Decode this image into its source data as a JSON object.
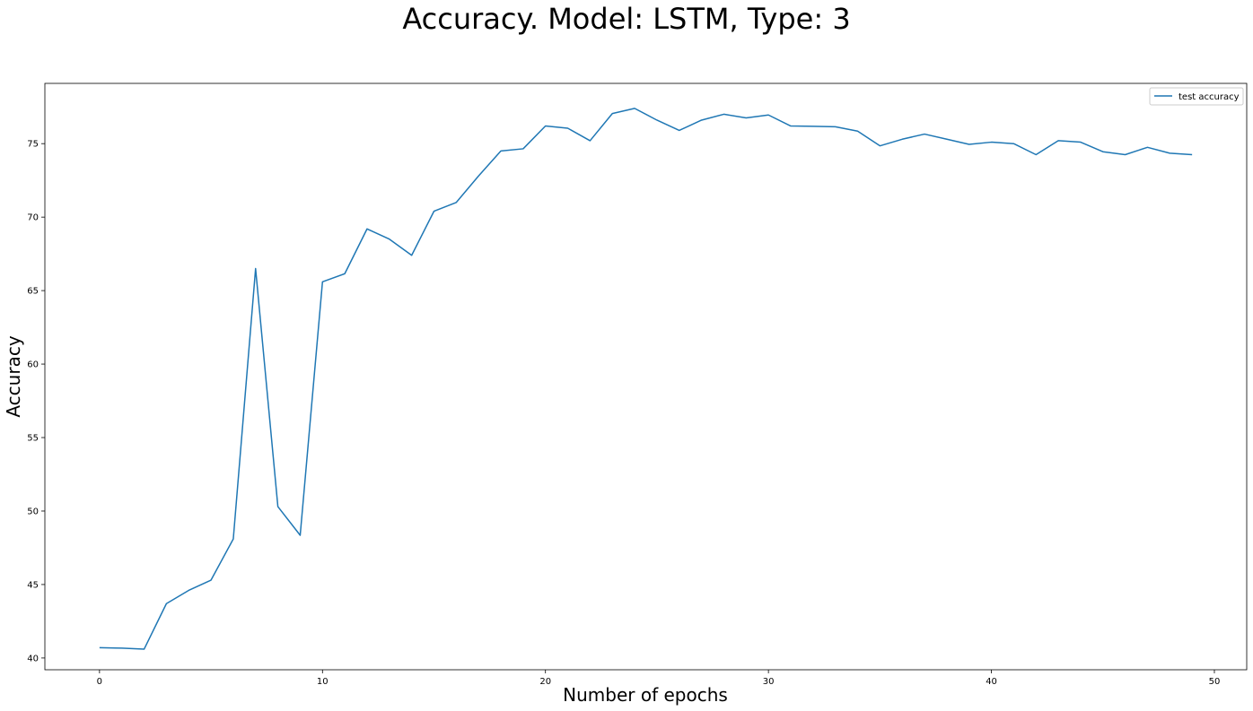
{
  "chart_data": {
    "type": "line",
    "title": "Accuracy. Model: LSTM, Type: 3",
    "xlabel": "Number of epochs",
    "ylabel": "Accuracy",
    "xlim": [
      -2.45,
      51.45
    ],
    "ylim": [
      39.2,
      79.1
    ],
    "xticks": [
      0,
      10,
      20,
      30,
      40,
      50
    ],
    "yticks": [
      40,
      45,
      50,
      55,
      60,
      65,
      70,
      75
    ],
    "grid": false,
    "legend": "top-right",
    "series": [
      {
        "name": "test accuracy",
        "color": "#1f77b4",
        "x": [
          0,
          1,
          2,
          3,
          4,
          5,
          6,
          7,
          8,
          9,
          10,
          11,
          12,
          13,
          14,
          15,
          16,
          17,
          18,
          19,
          20,
          21,
          22,
          23,
          24,
          25,
          26,
          27,
          28,
          29,
          30,
          31,
          32,
          33,
          34,
          35,
          36,
          37,
          38,
          39,
          40,
          41,
          42,
          43,
          44,
          45,
          46,
          47,
          48,
          49
        ],
        "values": [
          40.7,
          40.67,
          40.6,
          43.7,
          44.6,
          45.3,
          48.1,
          66.5,
          50.3,
          48.35,
          65.6,
          66.15,
          69.2,
          68.5,
          67.4,
          70.4,
          71.0,
          72.8,
          74.5,
          74.65,
          76.2,
          76.05,
          75.2,
          77.05,
          77.4,
          76.6,
          75.9,
          76.6,
          77.0,
          76.75,
          76.95,
          76.2,
          76.18,
          76.15,
          75.85,
          74.85,
          75.3,
          75.65,
          75.3,
          74.95,
          75.1,
          75.0,
          74.25,
          75.2,
          75.1,
          74.45,
          74.25,
          74.75,
          74.35,
          74.25
        ]
      }
    ]
  }
}
